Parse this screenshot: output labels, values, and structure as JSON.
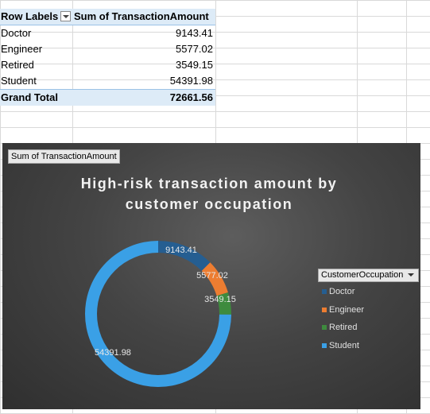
{
  "pivot": {
    "header": {
      "row_labels": "Row Labels",
      "value_header": "Sum of TransactionAmount"
    },
    "rows": [
      {
        "label": "Doctor",
        "value": "9143.41"
      },
      {
        "label": "Engineer",
        "value": "5577.02"
      },
      {
        "label": "Retired",
        "value": "3549.15"
      },
      {
        "label": "Student",
        "value": "54391.98"
      }
    ],
    "total": {
      "label": "Grand Total",
      "value": "72661.56"
    }
  },
  "chart": {
    "field_button": "Sum of TransactionAmount",
    "legend_button": "CustomerOccupation"
  },
  "chart_data": {
    "type": "pie",
    "title": "High-risk transaction amount by customer occupation",
    "title_line1": "High-risk transaction amount by",
    "title_line2": "customer occupation",
    "hole": true,
    "categories": [
      "Doctor",
      "Engineer",
      "Retired",
      "Student"
    ],
    "values": [
      9143.41,
      5577.02,
      3549.15,
      54391.98
    ],
    "labels": [
      "9143.41",
      "5577.02",
      "3549.15",
      "54391.98"
    ],
    "colors": [
      "#255e91",
      "#ed7d31",
      "#3e8b3e",
      "#3aa0e6"
    ],
    "legend_position": "right"
  }
}
